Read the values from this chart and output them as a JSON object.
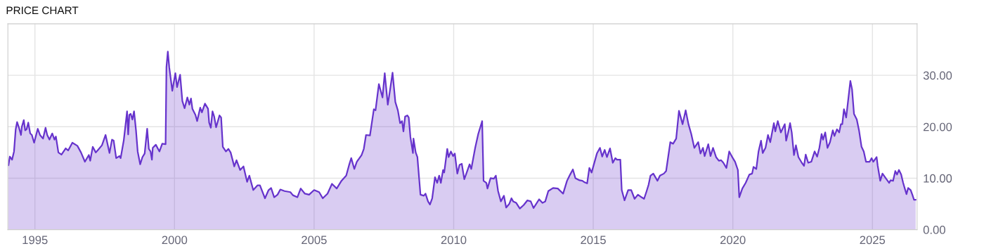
{
  "chart_data": {
    "type": "area",
    "title": "PRICE CHART",
    "xlim": [
      1994.03,
      2026.6
    ],
    "xticks": [
      1995,
      2000,
      2005,
      2010,
      2015,
      2020,
      2025
    ],
    "ylim": [
      0,
      40
    ],
    "yticks": [
      {
        "value": 0,
        "label": "0.00"
      },
      {
        "value": 10,
        "label": "10.00"
      },
      {
        "value": 20,
        "label": "20.00"
      },
      {
        "value": 30,
        "label": "30.00"
      }
    ],
    "grid": true,
    "series": [
      {
        "color": "#6633cc",
        "x": [
          1994.05,
          1994.1,
          1994.18,
          1994.25,
          1994.31,
          1994.36,
          1994.43,
          1994.5,
          1994.53,
          1994.6,
          1994.65,
          1994.7,
          1994.76,
          1994.83,
          1994.89,
          1994.97,
          1995.1,
          1995.18,
          1995.29,
          1995.38,
          1995.44,
          1995.52,
          1995.62,
          1995.7,
          1995.75,
          1995.84,
          1995.95,
          1996.1,
          1996.19,
          1996.34,
          1996.52,
          1996.65,
          1996.79,
          1996.93,
          1996.98,
          1997.07,
          1997.18,
          1997.26,
          1997.4,
          1997.53,
          1997.67,
          1997.76,
          1997.82,
          1997.91,
          1998.03,
          1998.07,
          1998.18,
          1998.3,
          1998.34,
          1998.38,
          1998.43,
          1998.49,
          1998.55,
          1998.62,
          1998.68,
          1998.77,
          1998.85,
          1998.93,
          1999.02,
          1999.08,
          1999.14,
          1999.19,
          1999.22,
          1999.33,
          1999.46,
          1999.56,
          1999.68,
          1999.71,
          1999.76,
          1999.81,
          1999.92,
          2000.03,
          2000.09,
          2000.2,
          2000.28,
          2000.36,
          2000.46,
          2000.53,
          2000.59,
          2000.64,
          2000.75,
          2000.81,
          2000.92,
          2000.98,
          2001.09,
          2001.2,
          2001.24,
          2001.3,
          2001.36,
          2001.42,
          2001.49,
          2001.61,
          2001.67,
          2001.73,
          2001.84,
          2001.93,
          2002.01,
          2002.14,
          2002.22,
          2002.35,
          2002.47,
          2002.6,
          2002.68,
          2002.82,
          2002.97,
          2003.06,
          2003.24,
          2003.37,
          2003.46,
          2003.57,
          2003.69,
          2003.79,
          2003.94,
          2004.15,
          2004.24,
          2004.4,
          2004.52,
          2004.67,
          2004.82,
          2005.0,
          2005.18,
          2005.31,
          2005.48,
          2005.64,
          2005.81,
          2005.98,
          2006.15,
          2006.25,
          2006.33,
          2006.44,
          2006.53,
          2006.7,
          2006.78,
          2006.86,
          2007.0,
          2007.14,
          2007.2,
          2007.32,
          2007.45,
          2007.53,
          2007.64,
          2007.7,
          2007.81,
          2007.91,
          2008.0,
          2008.08,
          2008.15,
          2008.2,
          2008.26,
          2008.34,
          2008.39,
          2008.45,
          2008.54,
          2008.56,
          2008.64,
          2008.7,
          2008.81,
          2008.93,
          2008.99,
          2009.08,
          2009.15,
          2009.23,
          2009.33,
          2009.41,
          2009.48,
          2009.54,
          2009.62,
          2009.66,
          2009.77,
          2009.82,
          2009.9,
          2009.98,
          2010.04,
          2010.13,
          2010.21,
          2010.29,
          2010.38,
          2010.46,
          2010.57,
          2010.63,
          2010.77,
          2010.88,
          2011.02,
          2011.07,
          2011.17,
          2011.21,
          2011.32,
          2011.44,
          2011.51,
          2011.59,
          2011.69,
          2011.8,
          2011.88,
          2011.99,
          2012.07,
          2012.13,
          2012.24,
          2012.37,
          2012.51,
          2012.64,
          2012.76,
          2012.86,
          2013.06,
          2013.18,
          2013.28,
          2013.39,
          2013.56,
          2013.73,
          2013.92,
          2014.06,
          2014.17,
          2014.27,
          2014.36,
          2014.51,
          2014.61,
          2014.69,
          2014.78,
          2014.86,
          2014.94,
          2015.13,
          2015.24,
          2015.32,
          2015.41,
          2015.49,
          2015.6,
          2015.7,
          2015.79,
          2015.85,
          2015.97,
          2016.02,
          2016.12,
          2016.25,
          2016.36,
          2016.48,
          2016.6,
          2016.73,
          2016.82,
          2016.9,
          2016.98,
          2017.05,
          2017.15,
          2017.3,
          2017.39,
          2017.53,
          2017.61,
          2017.76,
          2017.86,
          2017.97,
          2018.07,
          2018.2,
          2018.31,
          2018.41,
          2018.51,
          2018.62,
          2018.76,
          2018.84,
          2018.93,
          2018.99,
          2019.12,
          2019.2,
          2019.29,
          2019.4,
          2019.5,
          2019.58,
          2019.66,
          2019.77,
          2019.87,
          2020.0,
          2020.08,
          2020.18,
          2020.23,
          2020.34,
          2020.46,
          2020.59,
          2020.69,
          2020.74,
          2020.84,
          2020.92,
          2021.01,
          2021.07,
          2021.17,
          2021.26,
          2021.34,
          2021.47,
          2021.52,
          2021.61,
          2021.72,
          2021.86,
          2021.91,
          2021.99,
          2022.05,
          2022.11,
          2022.19,
          2022.26,
          2022.35,
          2022.47,
          2022.55,
          2022.61,
          2022.7,
          2022.81,
          2022.93,
          2023.02,
          2023.1,
          2023.18,
          2023.23,
          2023.31,
          2023.39,
          2023.48,
          2023.58,
          2023.64,
          2023.73,
          2023.81,
          2023.87,
          2023.92,
          2023.98,
          2024.06,
          2024.21,
          2024.27,
          2024.34,
          2024.44,
          2024.52,
          2024.61,
          2024.69,
          2024.77,
          2024.9,
          2024.97,
          2025.03,
          2025.15,
          2025.19,
          2025.28,
          2025.36,
          2025.49,
          2025.6,
          2025.65,
          2025.74,
          2025.82,
          2025.88,
          2025.95,
          2026.03,
          2026.1,
          2026.16,
          2026.22,
          2026.28,
          2026.37,
          2026.43,
          2026.49,
          2026.55
        ],
        "values": [
          12.5,
          14.2,
          13.6,
          15.2,
          19.5,
          20.9,
          19.8,
          18.4,
          20,
          21.3,
          19.3,
          19.5,
          20.8,
          18.7,
          18.4,
          16.9,
          19.6,
          18.4,
          17.7,
          19.8,
          18.4,
          17.5,
          18.7,
          17.5,
          18.1,
          15,
          14.6,
          15.8,
          15.4,
          16.9,
          16.3,
          15,
          13.2,
          14.5,
          13.4,
          16.1,
          15,
          15.5,
          16.4,
          18.4,
          14.9,
          17.5,
          17.3,
          13.9,
          14.3,
          13.9,
          17.3,
          23,
          18.5,
          22.3,
          22.5,
          21.4,
          23,
          19.3,
          15.2,
          12.7,
          14.1,
          14.8,
          19.6,
          15.7,
          15.2,
          13.6,
          15.9,
          16.5,
          15.2,
          16.7,
          16.6,
          31.6,
          34.6,
          31.6,
          27,
          30.4,
          27.7,
          30.1,
          25,
          23.6,
          25.7,
          24.3,
          25.5,
          23.5,
          22.3,
          21.1,
          23.7,
          22.8,
          24.5,
          23.5,
          20.8,
          19.8,
          23,
          22,
          19.9,
          22.2,
          21.8,
          16.1,
          15.2,
          15.7,
          15,
          12.3,
          13.5,
          11.6,
          12.3,
          9.3,
          10.5,
          7.7,
          8.6,
          8.6,
          6.1,
          7.7,
          8.1,
          6.3,
          6.8,
          7.8,
          7.5,
          7.3,
          6.7,
          6.3,
          8,
          7,
          6.8,
          7.7,
          7.3,
          6.1,
          7,
          8.9,
          8,
          9.5,
          10.5,
          12.5,
          13.9,
          11.8,
          13.2,
          14.5,
          15.7,
          18.4,
          18.3,
          23.4,
          23.2,
          28.3,
          25.7,
          30.4,
          24.3,
          26.4,
          30.5,
          24.8,
          23.2,
          20.7,
          21.1,
          19.1,
          22,
          22.2,
          21.8,
          18,
          14.9,
          17.7,
          15,
          14.1,
          6.8,
          6.6,
          7,
          5.5,
          4.9,
          6.1,
          10.2,
          9.1,
          10.5,
          9.1,
          11.6,
          11.1,
          15.7,
          14.1,
          15.2,
          14.3,
          14.8,
          10.9,
          12.6,
          12.8,
          9.8,
          11,
          12.7,
          11.8,
          15.9,
          18.6,
          21.1,
          9.5,
          9.1,
          8,
          10,
          9.9,
          10.5,
          7.5,
          5.5,
          6.6,
          4.3,
          5,
          6.1,
          5.5,
          5.2,
          4.1,
          4.8,
          5.7,
          5.5,
          4.2,
          5.9,
          5.2,
          5.5,
          7.5,
          8.1,
          8,
          7,
          9.5,
          10.7,
          11.7,
          10,
          9.6,
          9.5,
          9.2,
          9,
          12,
          11.1,
          14.8,
          15.9,
          14.2,
          15.5,
          14.1,
          15.8,
          13,
          13.9,
          13.6,
          13.6,
          7.7,
          5.7,
          7.7,
          7.7,
          6,
          6.8,
          6.3,
          6,
          7.3,
          8.7,
          10.5,
          10.9,
          9.5,
          10.5,
          10.9,
          11.4,
          17,
          16.7,
          17.7,
          23.1,
          20.5,
          23.2,
          20.5,
          18.6,
          15.9,
          17,
          14.8,
          15.9,
          14.3,
          16.6,
          14.3,
          15.9,
          14.1,
          13.4,
          13.5,
          13,
          12,
          15.2,
          13.9,
          13.2,
          11.6,
          6.3,
          8,
          9.1,
          10.7,
          10.9,
          12.2,
          11.8,
          15.2,
          17.3,
          14.9,
          15.9,
          18.4,
          17,
          20.7,
          19.1,
          21.1,
          18.9,
          20.5,
          17.3,
          19.1,
          20.7,
          18.9,
          14.5,
          16.4,
          14.1,
          13,
          12.4,
          14.6,
          13,
          13.2,
          15.2,
          14.2,
          15.9,
          18.6,
          17.5,
          18.9,
          15.9,
          17,
          19.3,
          18.2,
          19.5,
          18.9,
          20.5,
          20.5,
          23.4,
          21.8,
          28.9,
          27.3,
          22.5,
          21.4,
          19.3,
          16.1,
          15.2,
          13.2,
          13.2,
          13.9,
          13.2,
          14.1,
          12.4,
          9.5,
          10.9,
          9.9,
          9.1,
          9.6,
          9.5,
          11.4,
          10.7,
          11.6,
          10.7,
          9.1,
          8,
          6.9,
          8.1,
          7.7,
          6.8,
          5.8,
          5.8
        ]
      }
    ]
  }
}
